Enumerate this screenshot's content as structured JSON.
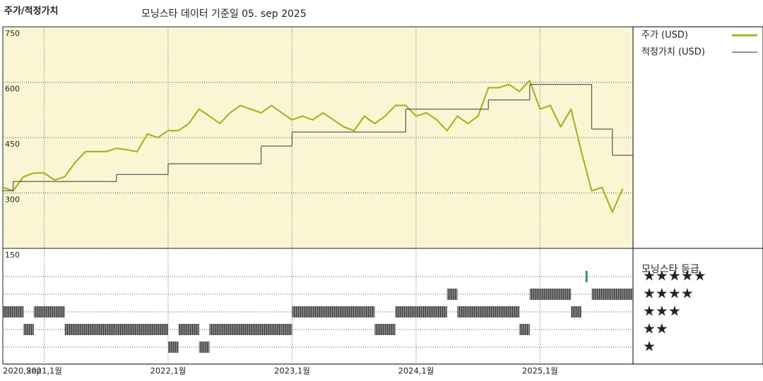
{
  "chart_data": [
    {
      "type": "line",
      "title": "주가/적정가치",
      "subtitle": "모닝스타 데이터 기준일 05. sep 2025",
      "x": [
        "2020-09",
        "2020-10",
        "2020-11",
        "2020-12",
        "2021-01",
        "2021-02",
        "2021-03",
        "2021-04",
        "2021-05",
        "2021-06",
        "2021-07",
        "2021-08",
        "2021-09",
        "2021-10",
        "2021-11",
        "2021-12",
        "2022-01",
        "2022-02",
        "2022-03",
        "2022-04",
        "2022-05",
        "2022-06",
        "2022-07",
        "2022-08",
        "2022-09",
        "2022-10",
        "2022-11",
        "2022-12",
        "2023-01",
        "2023-02",
        "2023-03",
        "2023-04",
        "2023-05",
        "2023-06",
        "2023-07",
        "2023-08",
        "2023-09",
        "2023-10",
        "2023-11",
        "2023-12",
        "2024-01",
        "2024-02",
        "2024-03",
        "2024-04",
        "2024-05",
        "2024-06",
        "2024-07",
        "2024-08",
        "2024-09",
        "2024-10",
        "2024-11",
        "2024-12",
        "2025-01",
        "2025-02",
        "2025-03",
        "2025-04",
        "2025-05",
        "2025-06",
        "2025-07",
        "2025-08",
        "2025-09"
      ],
      "xlim": [
        "2020-09",
        "2025-10"
      ],
      "xticks": [
        {
          "value": "2020-09",
          "label": "2020,Sep"
        },
        {
          "value": "2021-01",
          "label": "2021,1월"
        },
        {
          "value": "2022-01",
          "label": "2022,1월"
        },
        {
          "value": "2023-01",
          "label": "2023,1월"
        },
        {
          "value": "2024-01",
          "label": "2024,1월"
        },
        {
          "value": "2025-01",
          "label": "2025,1월"
        }
      ],
      "ylim": [
        150,
        750
      ],
      "yticks": [
        150,
        300,
        450,
        600,
        750
      ],
      "grid": true,
      "background": "#faf6d3",
      "series": [
        {
          "name": "주가 (USD)",
          "color": "#a9b325",
          "style": "line",
          "values": [
            315,
            306,
            344,
            354,
            354,
            335,
            344,
            383,
            412,
            412,
            412,
            421,
            417,
            412,
            460,
            450,
            469,
            469,
            488,
            527,
            508,
            488,
            517,
            537,
            527,
            517,
            537,
            517,
            498,
            508,
            498,
            517,
            498,
            479,
            469,
            508,
            488,
            508,
            537,
            537,
            508,
            517,
            498,
            469,
            508,
            488,
            508,
            585,
            585,
            594,
            575,
            604,
            527,
            537,
            479,
            527,
            412,
            306,
            315,
            248,
            312
          ]
        },
        {
          "name": "적정가치 (USD)",
          "color": "#555555",
          "style": "step",
          "values": [
            306,
            331,
            331,
            331,
            331,
            331,
            331,
            331,
            331,
            331,
            331,
            350,
            350,
            350,
            350,
            350,
            379,
            379,
            379,
            379,
            379,
            379,
            379,
            379,
            379,
            427,
            427,
            427,
            465,
            465,
            465,
            465,
            465,
            465,
            465,
            465,
            465,
            465,
            465,
            527,
            527,
            527,
            527,
            527,
            527,
            527,
            527,
            552,
            552,
            552,
            552,
            594,
            594,
            594,
            594,
            594,
            594,
            473,
            473,
            402,
            402
          ]
        }
      ]
    },
    {
      "type": "rating",
      "legend_title": "모닝스타 등급",
      "color": "#3a3a3a",
      "top_color": "#3d8f6e",
      "yticks": [
        {
          "value": 5,
          "label": "★★★★★"
        },
        {
          "value": 4,
          "label": "★★★★"
        },
        {
          "value": 3,
          "label": "★★★"
        },
        {
          "value": 2,
          "label": "★★"
        },
        {
          "value": 1,
          "label": "★"
        }
      ],
      "values": [
        3,
        3,
        2,
        3,
        3,
        3,
        2,
        2,
        2,
        2,
        2,
        2,
        2,
        2,
        2,
        2,
        1,
        2,
        2,
        1,
        2,
        2,
        2,
        2,
        2,
        2,
        2,
        2,
        3,
        3,
        3,
        3,
        3,
        3,
        3,
        3,
        2,
        2,
        3,
        3,
        3,
        3,
        3,
        4,
        3,
        3,
        3,
        3,
        3,
        3,
        2,
        4,
        4,
        4,
        4,
        3,
        5,
        4,
        4,
        4,
        4
      ]
    }
  ]
}
